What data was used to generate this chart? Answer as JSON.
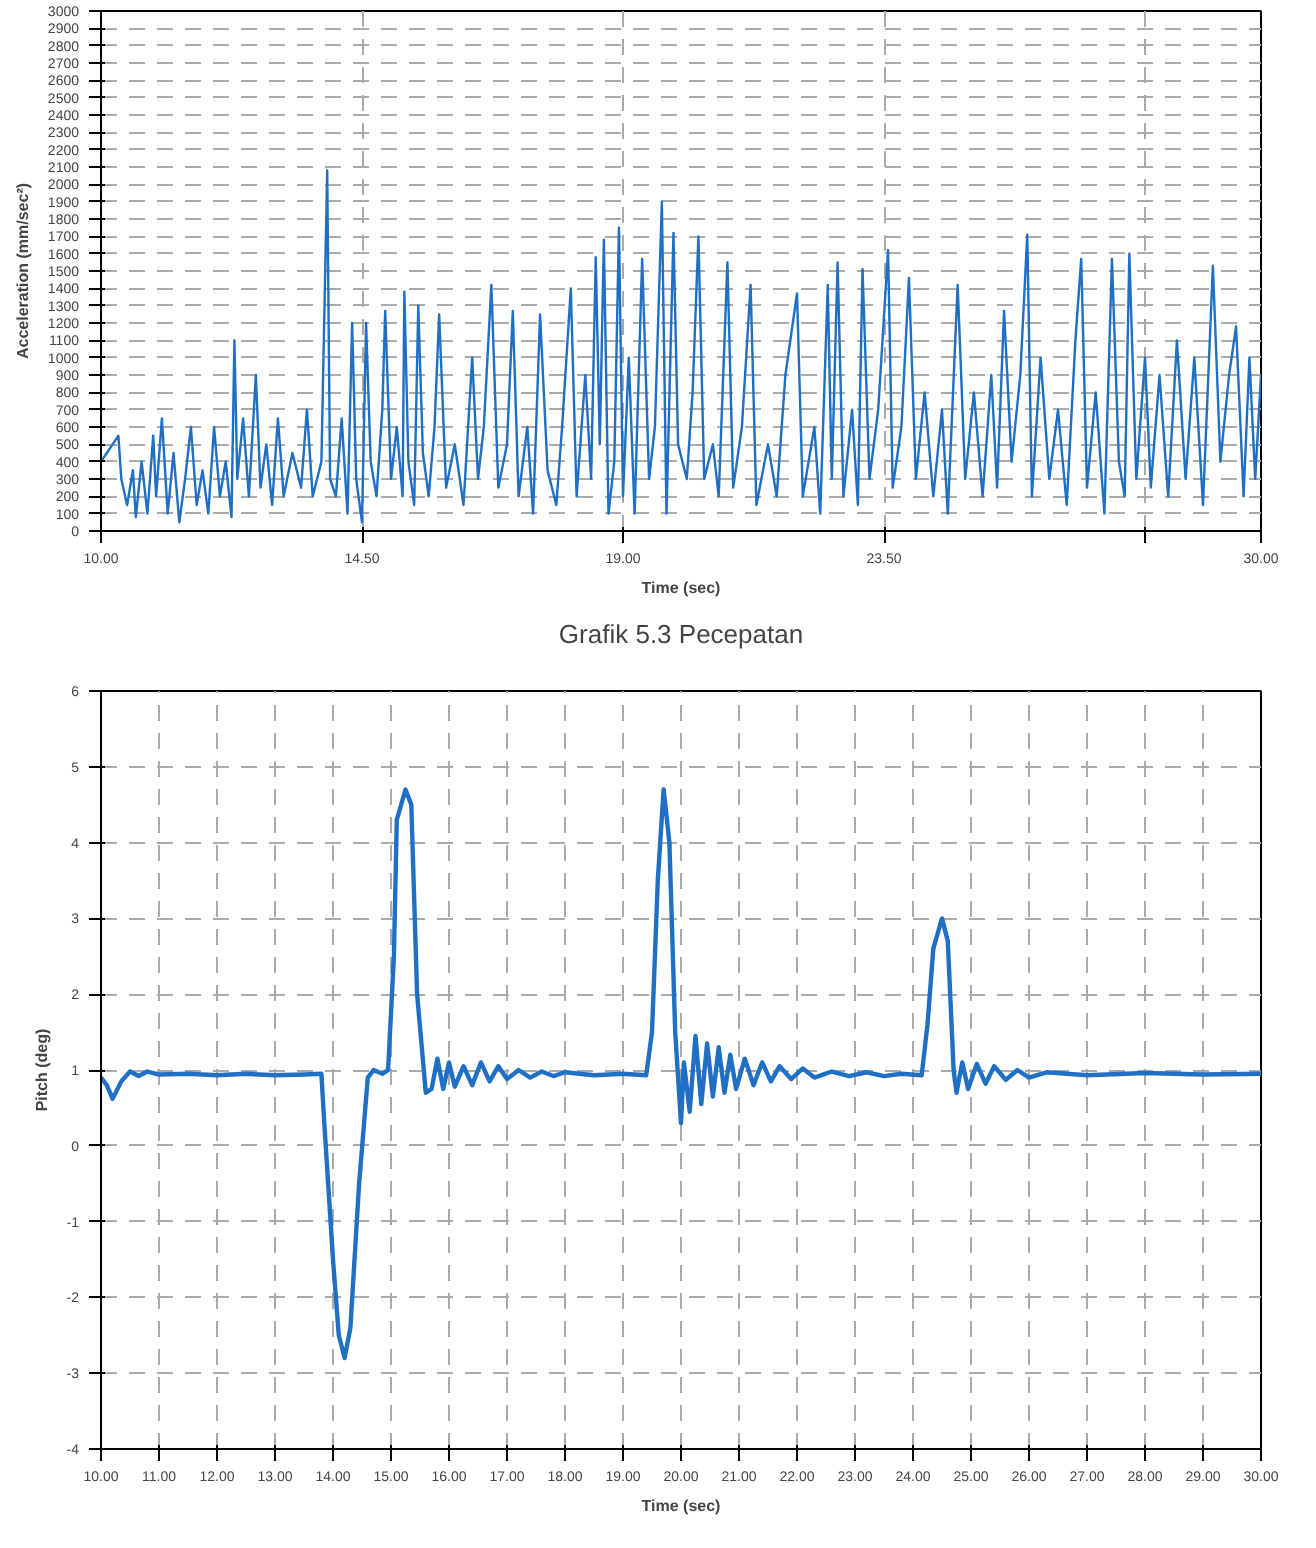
{
  "chart_data": [
    {
      "type": "line",
      "xlabel": "Time (sec)",
      "ylabel": "Acceleration (mm/sec²)",
      "annotations": [
        "Grafik 5.3 Pecepatan"
      ],
      "grid": true,
      "line_style": "solid",
      "xlim": [
        10,
        30
      ],
      "ylim": [
        0,
        3000
      ],
      "xticks": [
        {
          "value": 10,
          "label": "10.00"
        },
        {
          "value": 14.5,
          "label": "14.50"
        },
        {
          "value": 19,
          "label": "19.00"
        },
        {
          "value": 23.5,
          "label": "23.50"
        },
        {
          "value": 28,
          "label": null
        },
        {
          "value": 30,
          "label": "30.00"
        }
      ],
      "yticks": [
        0,
        100,
        200,
        300,
        400,
        500,
        600,
        700,
        800,
        900,
        1000,
        1100,
        1200,
        1300,
        1400,
        1500,
        1600,
        1700,
        1800,
        1900,
        2000,
        2100,
        2200,
        2300,
        2400,
        2500,
        2600,
        2700,
        2800,
        2900,
        3000
      ],
      "series": [
        {
          "color": "#1f6fc5",
          "x": [
            10.0,
            10.1,
            10.2,
            10.3,
            10.35,
            10.45,
            10.55,
            10.6,
            10.7,
            10.8,
            10.9,
            10.95,
            11.05,
            11.15,
            11.25,
            11.35,
            11.45,
            11.55,
            11.65,
            11.75,
            11.85,
            11.95,
            12.05,
            12.15,
            12.25,
            12.3,
            12.35,
            12.45,
            12.55,
            12.67,
            12.75,
            12.85,
            12.95,
            13.05,
            13.15,
            13.3,
            13.45,
            13.55,
            13.65,
            13.8,
            13.9,
            13.95,
            14.05,
            14.15,
            14.25,
            14.33,
            14.4,
            14.5,
            14.57,
            14.65,
            14.75,
            14.85,
            14.9,
            15.0,
            15.1,
            15.2,
            15.23,
            15.3,
            15.4,
            15.47,
            15.55,
            15.65,
            15.75,
            15.83,
            15.95,
            16.1,
            16.25,
            16.4,
            16.5,
            16.6,
            16.73,
            16.85,
            17.0,
            17.1,
            17.2,
            17.35,
            17.45,
            17.57,
            17.7,
            17.85,
            17.95,
            18.1,
            18.2,
            18.35,
            18.45,
            18.53,
            18.6,
            18.67,
            18.75,
            18.85,
            18.93,
            19.0,
            19.1,
            19.2,
            19.33,
            19.45,
            19.55,
            19.67,
            19.75,
            19.87,
            19.95,
            20.1,
            20.2,
            20.3,
            20.4,
            20.55,
            20.65,
            20.8,
            20.9,
            21.05,
            21.2,
            21.3,
            21.5,
            21.65,
            21.8,
            22.0,
            22.1,
            22.3,
            22.4,
            22.53,
            22.6,
            22.7,
            22.8,
            22.95,
            23.05,
            23.13,
            23.25,
            23.4,
            23.57,
            23.65,
            23.8,
            23.93,
            24.05,
            24.2,
            24.35,
            24.5,
            24.6,
            24.77,
            24.9,
            25.05,
            25.2,
            25.35,
            25.45,
            25.57,
            25.7,
            25.85,
            25.97,
            26.05,
            26.2,
            26.35,
            26.5,
            26.65,
            26.8,
            26.9,
            27.0,
            27.15,
            27.3,
            27.43,
            27.55,
            27.65,
            27.73,
            27.85,
            28.0,
            28.1,
            28.25,
            28.4,
            28.55,
            28.7,
            28.85,
            29.0,
            29.17,
            29.3,
            29.45,
            29.57,
            29.7,
            29.8,
            29.9,
            30.0
          ],
          "values": [
            400,
            450,
            500,
            550,
            300,
            150,
            350,
            80,
            400,
            100,
            550,
            200,
            650,
            100,
            450,
            50,
            300,
            600,
            150,
            350,
            100,
            600,
            200,
            400,
            80,
            1100,
            300,
            650,
            200,
            900,
            250,
            500,
            150,
            650,
            200,
            450,
            250,
            700,
            200,
            400,
            2080,
            300,
            200,
            650,
            100,
            1200,
            300,
            50,
            1200,
            400,
            200,
            700,
            1270,
            300,
            600,
            200,
            1380,
            400,
            150,
            1300,
            450,
            200,
            600,
            1250,
            250,
            500,
            150,
            1000,
            300,
            600,
            1420,
            250,
            500,
            1270,
            200,
            600,
            100,
            1250,
            350,
            150,
            600,
            1400,
            200,
            900,
            300,
            1580,
            500,
            1680,
            100,
            400,
            1750,
            200,
            1000,
            100,
            1570,
            300,
            600,
            1900,
            100,
            1720,
            500,
            300,
            800,
            1700,
            300,
            500,
            200,
            1550,
            250,
            600,
            1420,
            150,
            500,
            200,
            900,
            1370,
            200,
            600,
            100,
            1420,
            300,
            1550,
            200,
            700,
            150,
            1510,
            300,
            700,
            1620,
            250,
            600,
            1460,
            300,
            800,
            200,
            700,
            100,
            1420,
            300,
            800,
            200,
            900,
            250,
            1270,
            400,
            900,
            1710,
            200,
            1000,
            300,
            700,
            150,
            1100,
            1570,
            250,
            800,
            100,
            1570,
            400,
            200,
            1600,
            300,
            1000,
            250,
            900,
            200,
            1100,
            300,
            1000,
            150,
            1530,
            400,
            900,
            1180,
            200,
            1000,
            300,
            900
          ]
        }
      ]
    },
    {
      "type": "line",
      "xlabel": "Time (sec)",
      "ylabel": "Pitch (deg)",
      "grid": true,
      "line_style": "solid",
      "xlim": [
        10,
        30
      ],
      "ylim": [
        -4,
        6
      ],
      "xticks": [
        {
          "value": 10,
          "label": "10.00"
        },
        {
          "value": 11,
          "label": "11.00"
        },
        {
          "value": 12,
          "label": "12.00"
        },
        {
          "value": 13,
          "label": "13.00"
        },
        {
          "value": 14,
          "label": "14.00"
        },
        {
          "value": 15,
          "label": "15.00"
        },
        {
          "value": 16,
          "label": "16.00"
        },
        {
          "value": 17,
          "label": "17.00"
        },
        {
          "value": 18,
          "label": "18.00"
        },
        {
          "value": 19,
          "label": "19.00"
        },
        {
          "value": 20,
          "label": "20.00"
        },
        {
          "value": 21,
          "label": "21.00"
        },
        {
          "value": 22,
          "label": "22.00"
        },
        {
          "value": 23,
          "label": "23.00"
        },
        {
          "value": 24,
          "label": "24.00"
        },
        {
          "value": 25,
          "label": "25.00"
        },
        {
          "value": 26,
          "label": "26.00"
        },
        {
          "value": 27,
          "label": "27.00"
        },
        {
          "value": 28,
          "label": "28.00"
        },
        {
          "value": 29,
          "label": "29.00"
        },
        {
          "value": 30,
          "label": "30.00"
        }
      ],
      "yticks": [
        -4,
        -3,
        -2,
        -1,
        0,
        1,
        2,
        3,
        4,
        5,
        6
      ],
      "series": [
        {
          "color": "#1f6fc5",
          "x": [
            10.0,
            10.1,
            10.2,
            10.35,
            10.5,
            10.65,
            10.8,
            11.0,
            11.5,
            12.0,
            12.5,
            13.0,
            13.5,
            13.8,
            13.85,
            14.0,
            14.1,
            14.2,
            14.3,
            14.45,
            14.6,
            14.7,
            14.85,
            14.95,
            15.05,
            15.1,
            15.25,
            15.35,
            15.45,
            15.6,
            15.7,
            15.8,
            15.9,
            16.0,
            16.1,
            16.25,
            16.4,
            16.55,
            16.7,
            16.85,
            17.0,
            17.2,
            17.4,
            17.6,
            17.8,
            18.0,
            18.5,
            19.0,
            19.4,
            19.5,
            19.6,
            19.7,
            19.8,
            19.9,
            20.0,
            20.05,
            20.15,
            20.25,
            20.35,
            20.45,
            20.55,
            20.65,
            20.75,
            20.85,
            20.95,
            21.1,
            21.25,
            21.4,
            21.55,
            21.7,
            21.9,
            22.1,
            22.3,
            22.6,
            22.9,
            23.2,
            23.5,
            23.8,
            24.15,
            24.25,
            24.35,
            24.5,
            24.6,
            24.7,
            24.75,
            24.85,
            24.95,
            25.1,
            25.25,
            25.4,
            25.6,
            25.8,
            26.0,
            26.3,
            27.0,
            28.0,
            29.0,
            30.0
          ],
          "values": [
            0.9,
            0.8,
            0.62,
            0.85,
            0.98,
            0.92,
            0.98,
            0.94,
            0.95,
            0.93,
            0.95,
            0.93,
            0.94,
            0.95,
            0.3,
            -1.5,
            -2.5,
            -2.8,
            -2.4,
            -0.5,
            0.9,
            1.0,
            0.95,
            1.0,
            2.5,
            4.3,
            4.7,
            4.5,
            2.0,
            0.7,
            0.75,
            1.15,
            0.75,
            1.1,
            0.78,
            1.05,
            0.8,
            1.1,
            0.85,
            1.05,
            0.88,
            1.0,
            0.9,
            0.98,
            0.92,
            0.97,
            0.93,
            0.95,
            0.93,
            1.5,
            3.5,
            4.7,
            4.0,
            1.5,
            0.3,
            1.1,
            0.45,
            1.45,
            0.55,
            1.35,
            0.65,
            1.3,
            0.7,
            1.2,
            0.75,
            1.15,
            0.8,
            1.1,
            0.85,
            1.05,
            0.88,
            1.02,
            0.9,
            0.98,
            0.92,
            0.97,
            0.92,
            0.95,
            0.93,
            1.6,
            2.6,
            3.0,
            2.7,
            1.0,
            0.7,
            1.1,
            0.75,
            1.08,
            0.82,
            1.05,
            0.87,
            1.0,
            0.9,
            0.97,
            0.93,
            0.96,
            0.94,
            0.95
          ]
        }
      ]
    }
  ]
}
